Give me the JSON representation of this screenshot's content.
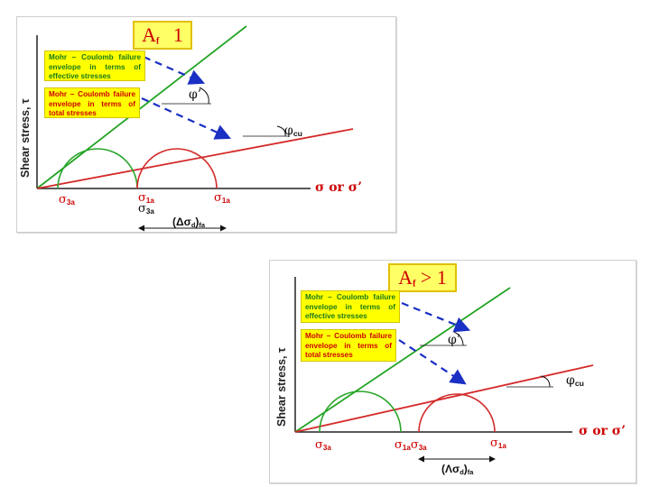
{
  "colors": {
    "green_envelope": "#22a322",
    "red_envelope": "#d42a2a",
    "circle_green": "#2aa52a",
    "circle_red": "#d42a2a",
    "arrow_blue": "#1a2fc4",
    "note_bg": "#ffff00",
    "title_bg": "#ffff66"
  },
  "panels": [
    {
      "title": {
        "prefix": "A",
        "sub": "f",
        "suffix": " 1"
      },
      "note_effective": "Mohr – Coulomb failure envelope in terms of effective stresses",
      "note_total": "Mohr – Coulomb failure envelope in terms of total stresses",
      "y_axis_label": "Shear stress, τ",
      "x_axis_label": "σ or σ’",
      "angle_effective": "φ’",
      "angle_total": {
        "base": "φ",
        "sub": "cu"
      },
      "sigma_3a": {
        "base": "σ",
        "sub": "3a"
      },
      "sigma_1a": {
        "base": "σ",
        "sub": "1a"
      },
      "sigma_3a_prime": {
        "base": "σ",
        "sub": "3a"
      },
      "sigma_1a_prime": {
        "base": "σ",
        "sub": "1a"
      },
      "deviator": {
        "base": "(Δσ",
        "sub1": "d",
        "mid": ")",
        "sub2": "fa"
      }
    },
    {
      "title": {
        "prefix": "A",
        "sub": "f",
        "suffix": " > 1"
      },
      "note_effective": "Mohr – Coulomb failure envelope in terms of effective stresses",
      "note_total": "Mohr – Coulomb failure envelope in terms of total stresses",
      "y_axis_label": "Shear stress, τ",
      "x_axis_label": "σ or σ’",
      "angle_effective": "φ’",
      "angle_total": {
        "base": "φ",
        "sub": "cu"
      },
      "sigma_3a": {
        "base": "σ",
        "sub": "3a"
      },
      "sigma_1a_prime": {
        "base": "σ",
        "sub": "1a"
      },
      "sigma_3a_prime": {
        "base": "σ",
        "sub": "3a"
      },
      "sigma_1a": {
        "base": "σ",
        "sub": "1a"
      },
      "deviator": {
        "base": "(Λσ",
        "sub1": "d",
        "mid": ")",
        "sub2": "fa"
      }
    }
  ]
}
